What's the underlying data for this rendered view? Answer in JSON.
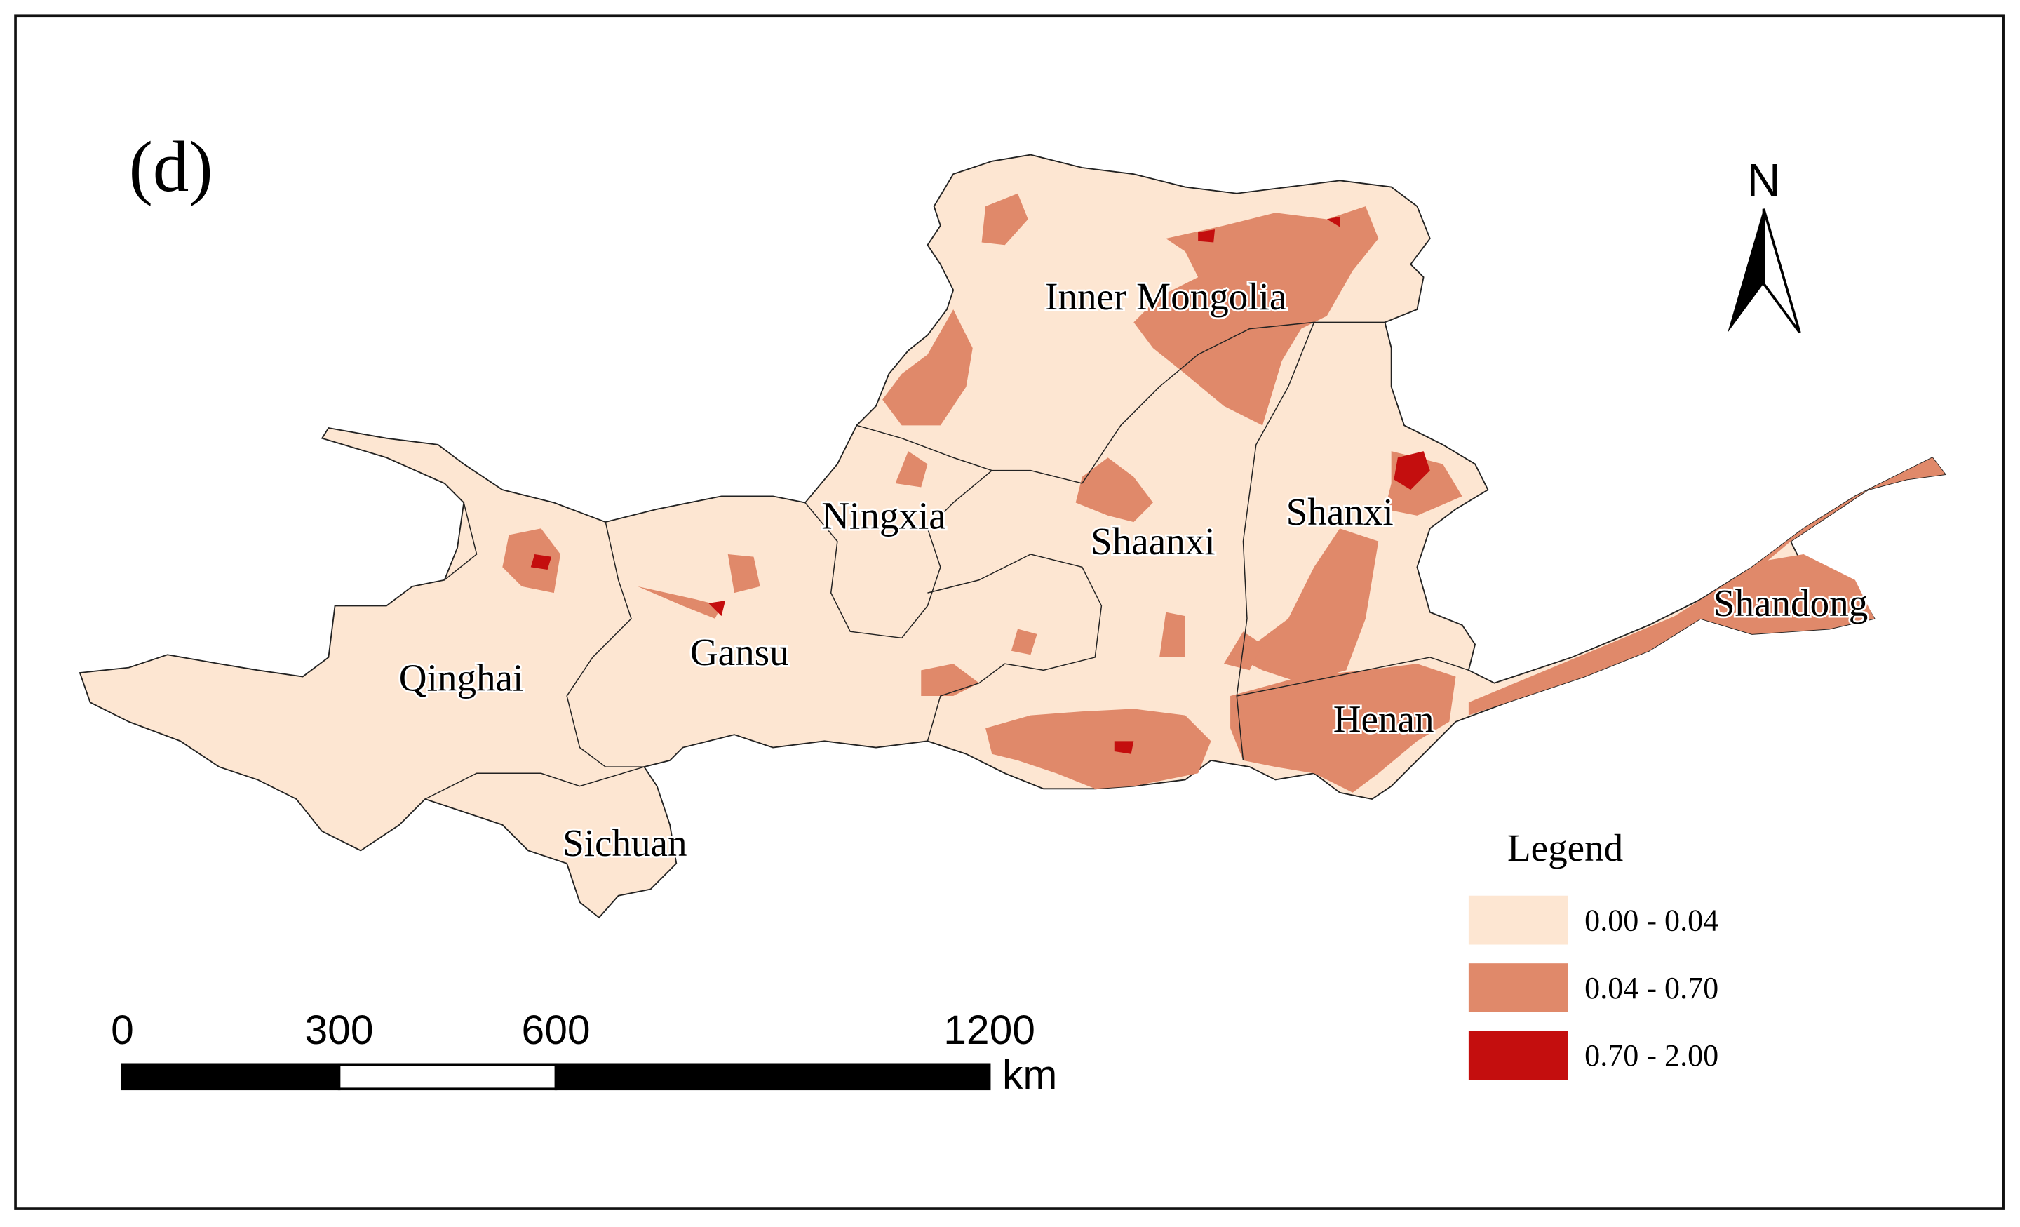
{
  "panel_label": "(d)",
  "north_label": "N",
  "regions": [
    {
      "label": "Inner Mongolia"
    },
    {
      "label": "Ningxia"
    },
    {
      "label": "Shaanxi"
    },
    {
      "label": "Shanxi"
    },
    {
      "label": "Qinghai"
    },
    {
      "label": "Gansu"
    },
    {
      "label": "Henan"
    },
    {
      "label": "Shandong"
    },
    {
      "label": "Sichuan"
    }
  ],
  "legend": {
    "title": "Legend",
    "classes": [
      {
        "label": "0.00 - 0.04",
        "color": "#fde6d2"
      },
      {
        "label": "0.04 - 0.70",
        "color": "#e0896a"
      },
      {
        "label": "0.70 - 2.00",
        "color": "#c40e0e"
      }
    ]
  },
  "scale_bar": {
    "ticks": [
      0,
      300,
      600,
      1200
    ],
    "unit": "km"
  }
}
